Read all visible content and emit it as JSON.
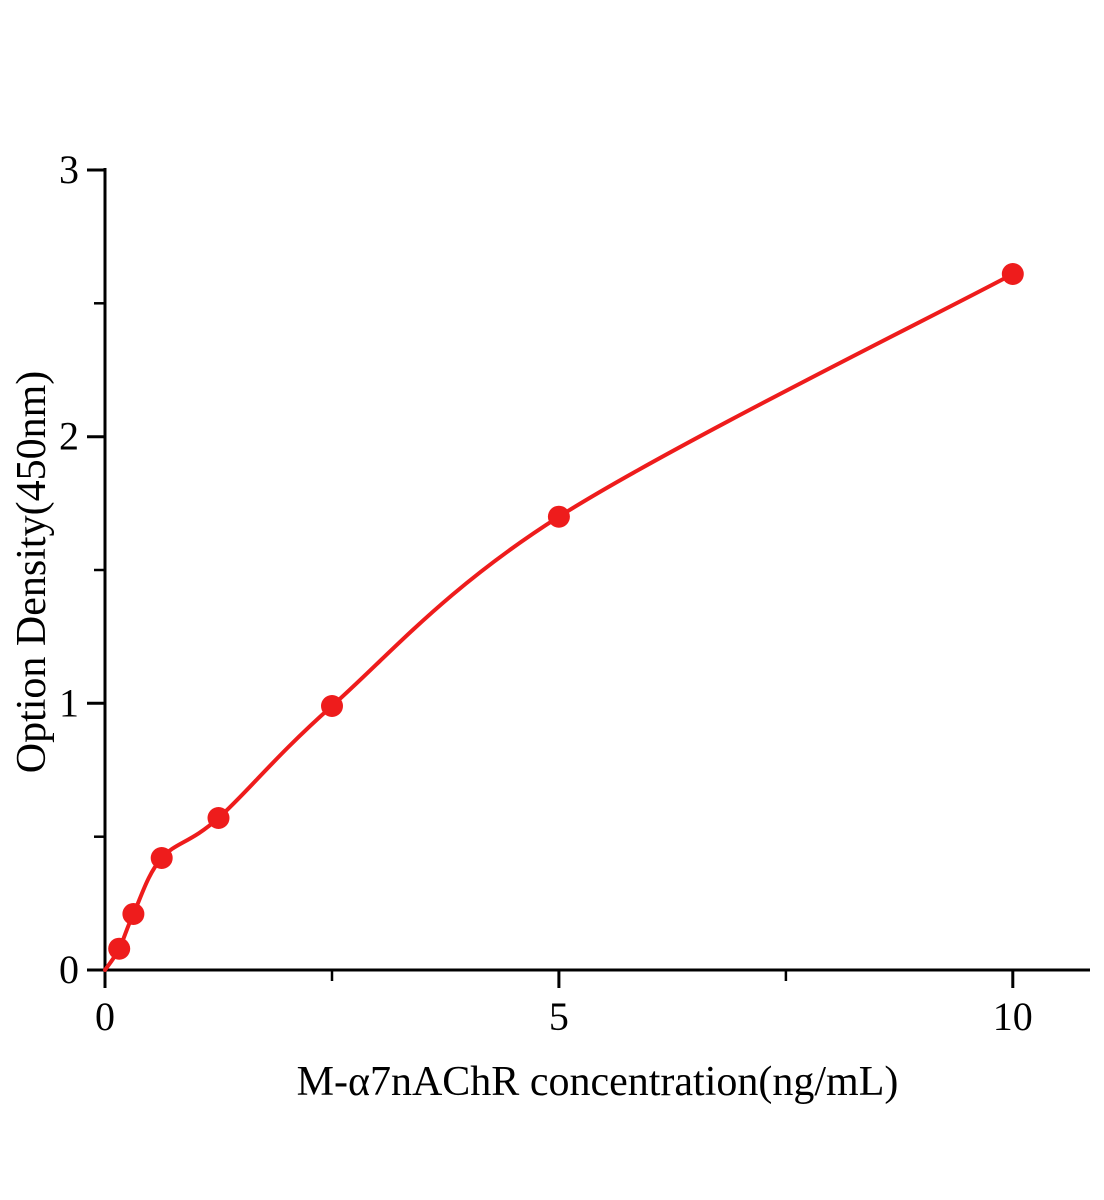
{
  "chart_data": {
    "type": "scatter",
    "title": "",
    "xlabel": "M-α7nAChR concentration(ng/mL)",
    "ylabel": "Option Density(450nm)",
    "x": [
      0.156,
      0.313,
      0.625,
      1.25,
      2.5,
      5,
      10
    ],
    "y": [
      0.08,
      0.21,
      0.42,
      0.57,
      0.99,
      1.7,
      2.61
    ],
    "curve_start": [
      0,
      0
    ],
    "curve_style": "smooth fit through origin",
    "xlim": [
      0,
      10.85
    ],
    "ylim": [
      0,
      3
    ],
    "x_major_ticks": [
      0,
      5,
      10
    ],
    "x_minor_ticks": [
      2.5,
      7.5
    ],
    "y_major_ticks": [
      0,
      1,
      2,
      3
    ],
    "y_minor_ticks": [
      0.5,
      1.5,
      2.5
    ],
    "grid": false,
    "legend": false,
    "point_color": "#ee1c1c",
    "line_color": "#ee1c1c",
    "axis_color": "#000000"
  }
}
